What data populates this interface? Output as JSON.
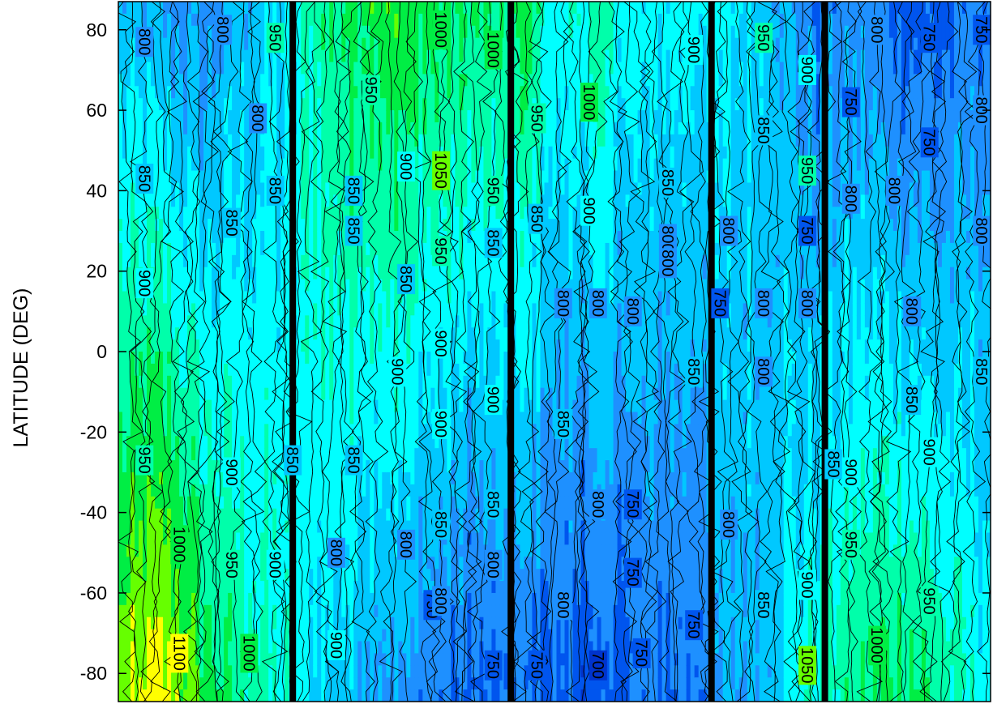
{
  "chart_data": {
    "type": "heatmap",
    "subtype": "filled-contour",
    "title": "",
    "xlabel": "",
    "ylabel": "LATITUDE (DEG)",
    "ylim": [
      -87,
      87
    ],
    "y_ticks": [
      80,
      60,
      40,
      20,
      0,
      -20,
      -40,
      -60,
      -80
    ],
    "y_tick_labels": [
      "80",
      "60",
      "40",
      "20",
      "0",
      "-20",
      "-40",
      "-60",
      "-80"
    ],
    "x_ticks_labeled": false,
    "contour_levels": [
      700,
      750,
      800,
      850,
      900,
      950,
      1000,
      1050,
      1100
    ],
    "colormap": [
      {
        "level": 700,
        "color": "#0033cc"
      },
      {
        "level": 750,
        "color": "#0055ee"
      },
      {
        "level": 800,
        "color": "#1e90ff"
      },
      {
        "level": 850,
        "color": "#00c8ff"
      },
      {
        "level": 900,
        "color": "#00ffff"
      },
      {
        "level": 950,
        "color": "#00ffaa"
      },
      {
        "level": 1000,
        "color": "#00ee44"
      },
      {
        "level": 1050,
        "color": "#66ff00"
      },
      {
        "level": 1100,
        "color": "#ffff00"
      }
    ],
    "column_profiles": [
      {
        "col": 0.0,
        "north": 850,
        "south": 1050
      },
      {
        "col": 0.05,
        "north": 820,
        "south": 1100
      },
      {
        "col": 0.1,
        "north": 800,
        "south": 1000
      },
      {
        "col": 0.15,
        "north": 850,
        "south": 950
      },
      {
        "col": 0.2,
        "north": 880,
        "south": 900
      },
      {
        "col": 0.22,
        "north": 950,
        "south": 880
      },
      {
        "col": 0.25,
        "north": 980,
        "south": 860
      },
      {
        "col": 0.3,
        "north": 1020,
        "south": 830
      },
      {
        "col": 0.35,
        "north": 1000,
        "south": 790
      },
      {
        "col": 0.4,
        "north": 980,
        "south": 760
      },
      {
        "col": 0.45,
        "north": 960,
        "south": 760
      },
      {
        "col": 0.47,
        "north": 1000,
        "south": 770
      },
      {
        "col": 0.5,
        "north": 900,
        "south": 760
      },
      {
        "col": 0.55,
        "north": 950,
        "south": 740
      },
      {
        "col": 0.6,
        "north": 880,
        "south": 770
      },
      {
        "col": 0.65,
        "north": 900,
        "south": 780
      },
      {
        "col": 0.7,
        "north": 880,
        "south": 820
      },
      {
        "col": 0.75,
        "north": 860,
        "south": 860
      },
      {
        "col": 0.8,
        "north": 780,
        "south": 930
      },
      {
        "col": 0.85,
        "north": 800,
        "south": 970
      },
      {
        "col": 0.9,
        "north": 760,
        "south": 1000
      },
      {
        "col": 0.95,
        "north": 760,
        "south": 950
      },
      {
        "col": 1.0,
        "north": 800,
        "south": 900
      }
    ],
    "dark_bands": [
      0.2,
      0.45,
      0.68,
      0.81
    ],
    "contour_labels": [
      {
        "text": "800",
        "x": 0.03,
        "lat": 77
      },
      {
        "text": "850",
        "x": 0.03,
        "lat": 43
      },
      {
        "text": "900",
        "x": 0.03,
        "lat": 17
      },
      {
        "text": "950",
        "x": 0.03,
        "lat": -27
      },
      {
        "text": "1000",
        "x": 0.07,
        "lat": -48
      },
      {
        "text": "1100",
        "x": 0.07,
        "lat": -75
      },
      {
        "text": "800",
        "x": 0.12,
        "lat": 80
      },
      {
        "text": "850",
        "x": 0.13,
        "lat": 32
      },
      {
        "text": "900",
        "x": 0.13,
        "lat": -30
      },
      {
        "text": "950",
        "x": 0.13,
        "lat": -53
      },
      {
        "text": "1000",
        "x": 0.15,
        "lat": -75
      },
      {
        "text": "800",
        "x": 0.16,
        "lat": 58
      },
      {
        "text": "850",
        "x": 0.18,
        "lat": 40
      },
      {
        "text": "900",
        "x": 0.18,
        "lat": -53
      },
      {
        "text": "950",
        "x": 0.18,
        "lat": 78
      },
      {
        "text": "850",
        "x": 0.2,
        "lat": -27
      },
      {
        "text": "850",
        "x": 0.27,
        "lat": 30
      },
      {
        "text": "850",
        "x": 0.27,
        "lat": 40
      },
      {
        "text": "850",
        "x": 0.27,
        "lat": -27
      },
      {
        "text": "800",
        "x": 0.25,
        "lat": -50
      },
      {
        "text": "900",
        "x": 0.25,
        "lat": -73
      },
      {
        "text": "950",
        "x": 0.29,
        "lat": 65
      },
      {
        "text": "900",
        "x": 0.32,
        "lat": -5
      },
      {
        "text": "900",
        "x": 0.33,
        "lat": 46
      },
      {
        "text": "850",
        "x": 0.33,
        "lat": 18
      },
      {
        "text": "800",
        "x": 0.33,
        "lat": -48
      },
      {
        "text": "750",
        "x": 0.36,
        "lat": -63
      },
      {
        "text": "1000",
        "x": 0.37,
        "lat": 80
      },
      {
        "text": "1050",
        "x": 0.37,
        "lat": 45
      },
      {
        "text": "950",
        "x": 0.37,
        "lat": 25
      },
      {
        "text": "900",
        "x": 0.37,
        "lat": 2
      },
      {
        "text": "900",
        "x": 0.37,
        "lat": -18
      },
      {
        "text": "850",
        "x": 0.37,
        "lat": -43
      },
      {
        "text": "800",
        "x": 0.37,
        "lat": -62
      },
      {
        "text": "1000",
        "x": 0.43,
        "lat": 75
      },
      {
        "text": "950",
        "x": 0.43,
        "lat": 40
      },
      {
        "text": "850",
        "x": 0.43,
        "lat": 27
      },
      {
        "text": "900",
        "x": 0.43,
        "lat": -12
      },
      {
        "text": "850",
        "x": 0.43,
        "lat": -38
      },
      {
        "text": "800",
        "x": 0.43,
        "lat": -53
      },
      {
        "text": "750",
        "x": 0.43,
        "lat": -78
      },
      {
        "text": "950",
        "x": 0.48,
        "lat": 58
      },
      {
        "text": "850",
        "x": 0.48,
        "lat": 33
      },
      {
        "text": "750",
        "x": 0.48,
        "lat": -78
      },
      {
        "text": "800",
        "x": 0.51,
        "lat": 12
      },
      {
        "text": "850",
        "x": 0.51,
        "lat": -18
      },
      {
        "text": "800",
        "x": 0.51,
        "lat": -63
      },
      {
        "text": "1000",
        "x": 0.54,
        "lat": 62
      },
      {
        "text": "900",
        "x": 0.54,
        "lat": 35
      },
      {
        "text": "800",
        "x": 0.55,
        "lat": 12
      },
      {
        "text": "800",
        "x": 0.55,
        "lat": -38
      },
      {
        "text": "700",
        "x": 0.55,
        "lat": -78
      },
      {
        "text": "800",
        "x": 0.59,
        "lat": 10
      },
      {
        "text": "750",
        "x": 0.59,
        "lat": -38
      },
      {
        "text": "750",
        "x": 0.59,
        "lat": -55
      },
      {
        "text": "750",
        "x": 0.6,
        "lat": -75
      },
      {
        "text": "850",
        "x": 0.63,
        "lat": 42
      },
      {
        "text": "800",
        "x": 0.63,
        "lat": 28
      },
      {
        "text": "800",
        "x": 0.63,
        "lat": 22
      },
      {
        "text": "850",
        "x": 0.66,
        "lat": -5
      },
      {
        "text": "750",
        "x": 0.66,
        "lat": -68
      },
      {
        "text": "900",
        "x": 0.66,
        "lat": 75
      },
      {
        "text": "750",
        "x": 0.69,
        "lat": 12
      },
      {
        "text": "800",
        "x": 0.7,
        "lat": 30
      },
      {
        "text": "800",
        "x": 0.7,
        "lat": -43
      },
      {
        "text": "950",
        "x": 0.74,
        "lat": 78
      },
      {
        "text": "850",
        "x": 0.74,
        "lat": 55
      },
      {
        "text": "800",
        "x": 0.74,
        "lat": 12
      },
      {
        "text": "800",
        "x": 0.74,
        "lat": -5
      },
      {
        "text": "850",
        "x": 0.74,
        "lat": -63
      },
      {
        "text": "900",
        "x": 0.79,
        "lat": 70
      },
      {
        "text": "950",
        "x": 0.79,
        "lat": 45
      },
      {
        "text": "750",
        "x": 0.79,
        "lat": 30
      },
      {
        "text": "800",
        "x": 0.79,
        "lat": 12
      },
      {
        "text": "900",
        "x": 0.79,
        "lat": -58
      },
      {
        "text": "1050",
        "x": 0.79,
        "lat": -78
      },
      {
        "text": "750",
        "x": 0.84,
        "lat": 62
      },
      {
        "text": "800",
        "x": 0.84,
        "lat": 38
      },
      {
        "text": "850",
        "x": 0.82,
        "lat": -28
      },
      {
        "text": "900",
        "x": 0.84,
        "lat": -30
      },
      {
        "text": "950",
        "x": 0.84,
        "lat": -48
      },
      {
        "text": "1000",
        "x": 0.87,
        "lat": -73
      },
      {
        "text": "800",
        "x": 0.87,
        "lat": 80
      },
      {
        "text": "800",
        "x": 0.89,
        "lat": 40
      },
      {
        "text": "800",
        "x": 0.91,
        "lat": 10
      },
      {
        "text": "850",
        "x": 0.91,
        "lat": -12
      },
      {
        "text": "750",
        "x": 0.93,
        "lat": 78
      },
      {
        "text": "750",
        "x": 0.93,
        "lat": 52
      },
      {
        "text": "900",
        "x": 0.93,
        "lat": -25
      },
      {
        "text": "950",
        "x": 0.93,
        "lat": -62
      },
      {
        "text": "750",
        "x": 0.99,
        "lat": 80
      },
      {
        "text": "800",
        "x": 0.99,
        "lat": 60
      },
      {
        "text": "800",
        "x": 0.99,
        "lat": 30
      },
      {
        "text": "850",
        "x": 0.99,
        "lat": -5
      }
    ]
  }
}
